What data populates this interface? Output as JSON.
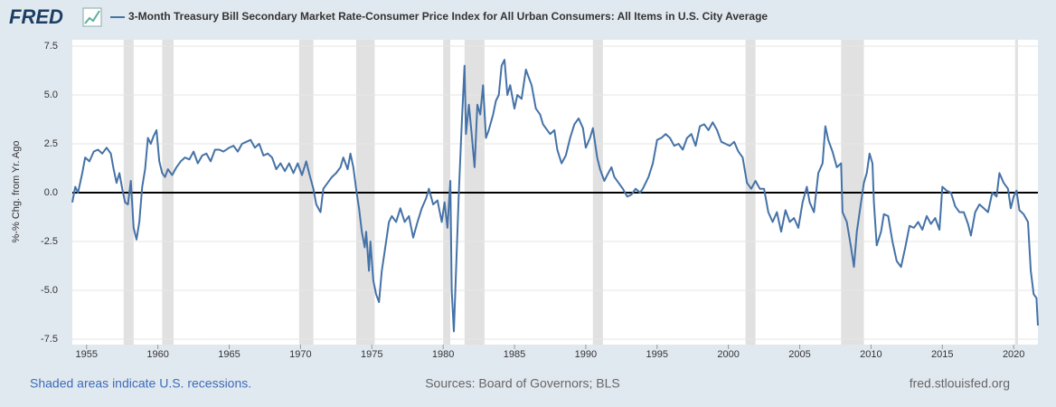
{
  "brand": "FRED",
  "chart_data": {
    "type": "line",
    "series": [
      {
        "name": "3-Month Treasury Bill Secondary Market Rate-Consumer Price Index for All Urban Consumers: All Items in U.S. City Average",
        "color": "#4572a7",
        "x": [
          1954.0,
          1954.2,
          1954.4,
          1954.7,
          1954.9,
          1955.2,
          1955.5,
          1955.8,
          1956.1,
          1956.4,
          1956.7,
          1956.9,
          1957.1,
          1957.3,
          1957.5,
          1957.7,
          1957.9,
          1958.1,
          1958.3,
          1958.5,
          1958.7,
          1958.9,
          1959.1,
          1959.3,
          1959.5,
          1959.7,
          1959.9,
          1960.1,
          1960.3,
          1960.5,
          1960.7,
          1961.0,
          1961.3,
          1961.6,
          1961.9,
          1962.2,
          1962.5,
          1962.8,
          1963.1,
          1963.4,
          1963.7,
          1964.0,
          1964.3,
          1964.6,
          1965.0,
          1965.3,
          1965.6,
          1965.9,
          1966.2,
          1966.5,
          1966.8,
          1967.1,
          1967.4,
          1967.7,
          1968.0,
          1968.3,
          1968.6,
          1968.9,
          1969.2,
          1969.5,
          1969.8,
          1970.1,
          1970.4,
          1970.6,
          1970.9,
          1971.1,
          1971.4,
          1971.6,
          1971.9,
          1972.2,
          1972.5,
          1972.8,
          1973.0,
          1973.3,
          1973.5,
          1973.7,
          1973.9,
          1974.1,
          1974.3,
          1974.5,
          1974.6,
          1974.8,
          1974.9,
          1975.1,
          1975.3,
          1975.5,
          1975.7,
          1975.9,
          1976.2,
          1976.4,
          1976.7,
          1977.0,
          1977.3,
          1977.6,
          1977.9,
          1978.2,
          1978.5,
          1978.8,
          1979.0,
          1979.3,
          1979.6,
          1979.9,
          1980.1,
          1980.3,
          1980.5,
          1980.6,
          1980.75,
          1980.9,
          1981.1,
          1981.3,
          1981.5,
          1981.6,
          1981.8,
          1982.0,
          1982.2,
          1982.4,
          1982.6,
          1982.8,
          1983.0,
          1983.2,
          1983.5,
          1983.7,
          1983.9,
          1984.1,
          1984.3,
          1984.5,
          1984.7,
          1985.0,
          1985.2,
          1985.5,
          1985.8,
          1986.0,
          1986.2,
          1986.5,
          1986.8,
          1987.0,
          1987.3,
          1987.5,
          1987.8,
          1988.0,
          1988.3,
          1988.6,
          1988.9,
          1989.2,
          1989.5,
          1989.8,
          1990.0,
          1990.3,
          1990.5,
          1990.8,
          1991.0,
          1991.3,
          1991.5,
          1991.8,
          1992.0,
          1992.3,
          1992.6,
          1992.9,
          1993.2,
          1993.5,
          1993.8,
          1994.0,
          1994.4,
          1994.7,
          1995.0,
          1995.3,
          1995.6,
          1995.9,
          1996.2,
          1996.5,
          1996.8,
          1997.1,
          1997.4,
          1997.7,
          1998.0,
          1998.3,
          1998.6,
          1998.9,
          1999.2,
          1999.5,
          1999.8,
          2000.1,
          2000.4,
          2000.7,
          2001.0,
          2001.3,
          2001.6,
          2001.9,
          2002.2,
          2002.5,
          2002.8,
          2003.1,
          2003.4,
          2003.7,
          2004.0,
          2004.3,
          2004.6,
          2004.9,
          2005.2,
          2005.5,
          2005.7,
          2006.0,
          2006.3,
          2006.6,
          2006.8,
          2007.0,
          2007.3,
          2007.6,
          2007.9,
          2008.0,
          2008.3,
          2008.6,
          2008.8,
          2009.0,
          2009.2,
          2009.5,
          2009.7,
          2009.9,
          2010.1,
          2010.2,
          2010.4,
          2010.7,
          2010.9,
          2011.2,
          2011.5,
          2011.8,
          2012.1,
          2012.4,
          2012.7,
          2013.0,
          2013.3,
          2013.6,
          2013.9,
          2014.2,
          2014.5,
          2014.8,
          2015.0,
          2015.3,
          2015.6,
          2015.9,
          2016.2,
          2016.5,
          2016.8,
          2017.0,
          2017.3,
          2017.6,
          2017.9,
          2018.2,
          2018.5,
          2018.8,
          2019.0,
          2019.3,
          2019.6,
          2019.8,
          2020.0,
          2020.2,
          2020.4,
          2020.7,
          2021.0,
          2021.2,
          2021.4,
          2021.6,
          2021.7
        ],
        "values": [
          -0.5,
          0.3,
          0.0,
          1.0,
          1.8,
          1.6,
          2.1,
          2.2,
          2.0,
          2.3,
          2.0,
          1.2,
          0.5,
          1.0,
          0.2,
          -0.5,
          -0.6,
          0.6,
          -1.8,
          -2.4,
          -1.5,
          0.3,
          1.2,
          2.8,
          2.5,
          2.9,
          3.2,
          1.6,
          1.0,
          0.8,
          1.2,
          0.9,
          1.3,
          1.6,
          1.8,
          1.7,
          2.1,
          1.5,
          1.9,
          2.0,
          1.6,
          2.2,
          2.2,
          2.1,
          2.3,
          2.4,
          2.1,
          2.5,
          2.6,
          2.7,
          2.3,
          2.5,
          1.9,
          2.0,
          1.8,
          1.2,
          1.5,
          1.1,
          1.5,
          1.0,
          1.5,
          0.9,
          1.6,
          1.0,
          0.2,
          -0.6,
          -1.0,
          0.2,
          0.5,
          0.8,
          1.0,
          1.3,
          1.8,
          1.2,
          2.0,
          1.3,
          0.2,
          -0.8,
          -2.0,
          -2.8,
          -2.0,
          -4.0,
          -2.5,
          -4.5,
          -5.2,
          -5.6,
          -4.0,
          -3.0,
          -1.5,
          -1.2,
          -1.5,
          -0.8,
          -1.5,
          -1.2,
          -2.3,
          -1.5,
          -0.8,
          -0.3,
          0.2,
          -0.6,
          -0.4,
          -1.5,
          -0.5,
          -1.8,
          0.6,
          -5.0,
          -7.1,
          -4.0,
          0.0,
          3.5,
          6.5,
          3.0,
          4.5,
          3.0,
          1.3,
          4.5,
          4.0,
          5.5,
          2.8,
          3.2,
          4.0,
          4.7,
          5.0,
          6.5,
          6.8,
          5.0,
          5.5,
          4.3,
          5.0,
          4.8,
          6.3,
          5.9,
          5.5,
          4.3,
          4.0,
          3.5,
          3.2,
          3.0,
          3.2,
          2.2,
          1.5,
          1.9,
          2.8,
          3.5,
          3.8,
          3.3,
          2.3,
          2.8,
          3.3,
          1.8,
          1.2,
          0.6,
          0.9,
          1.3,
          0.8,
          0.5,
          0.2,
          -0.2,
          -0.1,
          0.2,
          0.0,
          0.2,
          0.8,
          1.5,
          2.7,
          2.8,
          3.0,
          2.8,
          2.4,
          2.5,
          2.2,
          2.8,
          3.0,
          2.4,
          3.4,
          3.5,
          3.2,
          3.6,
          3.2,
          2.6,
          2.5,
          2.4,
          2.6,
          2.1,
          1.8,
          0.5,
          0.2,
          0.6,
          0.2,
          0.2,
          -1.0,
          -1.5,
          -1.0,
          -2.0,
          -0.9,
          -1.5,
          -1.3,
          -1.8,
          -0.5,
          0.3,
          -0.5,
          -1.0,
          1.0,
          1.5,
          3.4,
          2.7,
          2.1,
          1.3,
          1.5,
          -1.0,
          -1.5,
          -2.8,
          -3.8,
          -2.0,
          -1.0,
          0.5,
          1.0,
          2.0,
          1.5,
          -0.5,
          -2.7,
          -2.0,
          -1.1,
          -1.2,
          -2.5,
          -3.5,
          -3.8,
          -2.8,
          -1.7,
          -1.8,
          -1.5,
          -1.9,
          -1.2,
          -1.6,
          -1.3,
          -1.9,
          0.3,
          0.1,
          0.0,
          -0.7,
          -1.0,
          -1.0,
          -1.6,
          -2.2,
          -1.0,
          -0.6,
          -0.8,
          -1.0,
          0.0,
          -0.2,
          1.0,
          0.5,
          0.2,
          -0.8,
          -0.2,
          0.1,
          -0.9,
          -1.1,
          -1.5,
          -4.0,
          -5.2,
          -5.4,
          -6.8
        ]
      }
    ],
    "recessions": [
      [
        1957.6,
        1958.3
      ],
      [
        1960.3,
        1961.1
      ],
      [
        1969.9,
        1970.9
      ],
      [
        1973.9,
        1975.2
      ],
      [
        1980.0,
        1980.5
      ],
      [
        1981.5,
        1982.9
      ],
      [
        1990.5,
        1991.2
      ],
      [
        2001.2,
        2001.9
      ],
      [
        2007.9,
        2009.5
      ],
      [
        2020.1,
        2020.3
      ]
    ],
    "ylabel": "%-% Chg. from Yr. Ago",
    "xlim": [
      1954.0,
      2021.7
    ],
    "ylim": [
      -7.5,
      7.5
    ],
    "xticks": [
      1955,
      1960,
      1965,
      1970,
      1975,
      1980,
      1985,
      1990,
      1995,
      2000,
      2005,
      2010,
      2015,
      2020
    ],
    "yticks": [
      -7.5,
      {
        "value": -5,
        "label": "-5.0"
      },
      -2.5,
      {
        "value": 0,
        "label": "0.0"
      },
      2.5,
      {
        "value": 5,
        "label": "5.0"
      },
      7.5
    ],
    "grid": true,
    "note": "Shaded areas indicate U.S. recessions.",
    "source": "Sources: Board of Governors; BLS",
    "site": "fred.stlouisfed.org"
  }
}
